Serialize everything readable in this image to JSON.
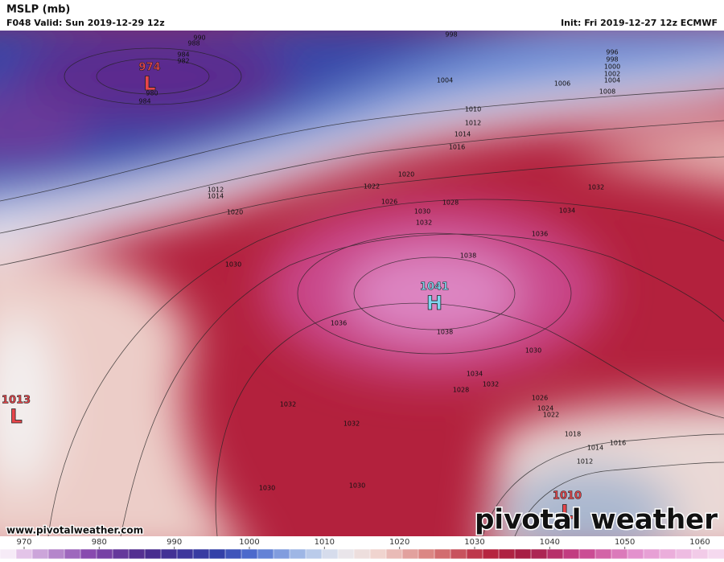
{
  "header": {
    "title": "MSLP (mb)",
    "valid": "F048 Valid: Sun 2019-12-29 12z",
    "init": "Init: Fri 2019-12-27 12z ECMWF"
  },
  "centers": [
    {
      "value": "974",
      "type": "L"
    },
    {
      "value": "1041",
      "type": "H"
    },
    {
      "value": "1013",
      "type": "L"
    },
    {
      "value": "1010",
      "type": "L"
    }
  ],
  "isobar_labels": [
    "990",
    "988",
    "984",
    "982",
    "980",
    "984",
    "998",
    "996",
    "998",
    "1000",
    "1002",
    "1004",
    "1004",
    "1006",
    "1008",
    "1010",
    "1012",
    "1014",
    "1016",
    "1020",
    "1022",
    "1026",
    "1030",
    "1032",
    "1028",
    "1034",
    "1032",
    "1036",
    "1038",
    "1036",
    "1038",
    "1030",
    "1030",
    "1034",
    "1032",
    "1028",
    "1026",
    "1024",
    "1022",
    "1018",
    "1014",
    "1016",
    "1012",
    "1032",
    "1032",
    "1030",
    "1030",
    "1020",
    "1014",
    "1012"
  ],
  "footer": {
    "url": "www.pivotalweather.com",
    "brand": "pivotal weather"
  },
  "colorbar": {
    "ticks": [
      970,
      980,
      990,
      1000,
      1010,
      1020,
      1030,
      1040,
      1050,
      1060
    ]
  }
}
